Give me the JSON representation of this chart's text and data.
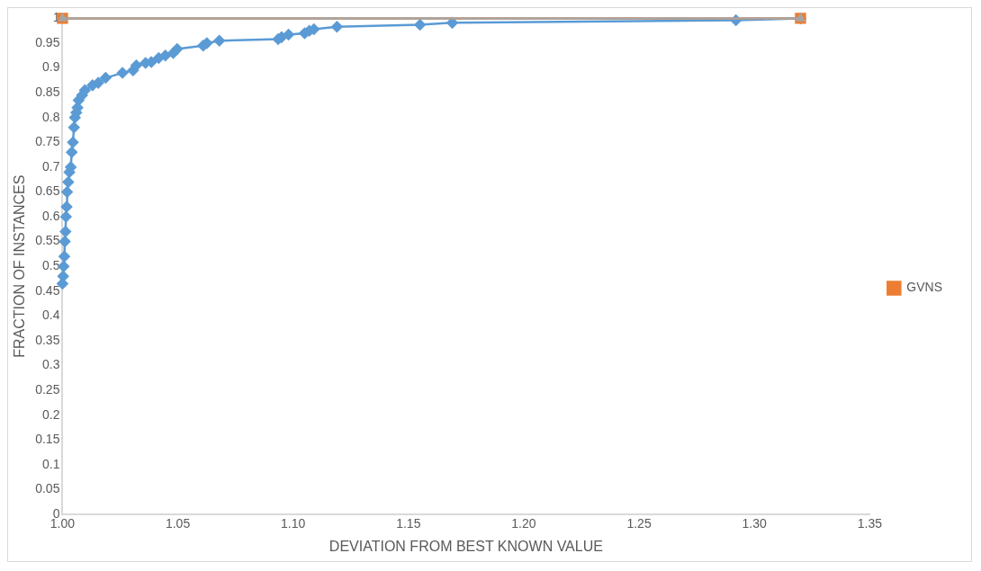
{
  "chart_data": {
    "type": "line",
    "xlabel": "DEVIATION FROM BEST KNOWN VALUE",
    "ylabel": "FRACTION OF INSTANCES",
    "xlim": [
      1.0,
      1.35
    ],
    "ylim": [
      0,
      1
    ],
    "xticks": [
      {
        "value": 1.0,
        "label": "1.00"
      },
      {
        "value": 1.05,
        "label": "1.05"
      },
      {
        "value": 1.1,
        "label": "1.10"
      },
      {
        "value": 1.15,
        "label": "1.15"
      },
      {
        "value": 1.2,
        "label": "1.20"
      },
      {
        "value": 1.25,
        "label": "1.25"
      },
      {
        "value": 1.3,
        "label": "1.30"
      },
      {
        "value": 1.35,
        "label": "1.35"
      }
    ],
    "yticks": [
      0,
      0.05,
      0.1,
      0.15,
      0.2,
      0.25,
      0.3,
      0.35,
      0.4,
      0.45,
      0.5,
      0.55,
      0.6,
      0.65,
      0.7,
      0.75,
      0.8,
      0.85,
      0.9,
      0.95,
      1
    ],
    "grid": false,
    "legend": "right",
    "series": [
      {
        "color": "#5b9bd5",
        "marker": "diamond",
        "x": [
          1.0,
          1.0003,
          1.0005,
          1.0008,
          1.001,
          1.0013,
          1.0015,
          1.0018,
          1.002,
          1.0025,
          1.003,
          1.0036,
          1.004,
          1.0045,
          1.005,
          1.0054,
          1.006,
          1.0065,
          1.007,
          1.0085,
          1.0097,
          1.013,
          1.0155,
          1.0187,
          1.026,
          1.0306,
          1.032,
          1.036,
          1.0385,
          1.0417,
          1.0446,
          1.048,
          1.0497,
          1.061,
          1.0626,
          1.068,
          1.0935,
          1.095,
          1.098,
          1.105,
          1.107,
          1.109,
          1.119,
          1.155,
          1.169,
          1.292,
          1.32
        ],
        "values": [
          0.465,
          0.48,
          0.5,
          0.52,
          0.55,
          0.57,
          0.6,
          0.62,
          0.65,
          0.67,
          0.69,
          0.7,
          0.73,
          0.75,
          0.78,
          0.8,
          0.81,
          0.82,
          0.835,
          0.845,
          0.855,
          0.865,
          0.87,
          0.88,
          0.89,
          0.895,
          0.905,
          0.91,
          0.912,
          0.92,
          0.925,
          0.93,
          0.938,
          0.945,
          0.95,
          0.955,
          0.958,
          0.962,
          0.967,
          0.97,
          0.975,
          0.978,
          0.983,
          0.987,
          0.991,
          0.996,
          1
        ]
      },
      {
        "name": "GVNS",
        "color": "#ed7d31",
        "marker": "square",
        "x": [
          1.0,
          1.32
        ],
        "values": [
          1,
          1
        ]
      },
      {
        "color": "#a5a5a5",
        "marker": "triangle",
        "x": [
          1.0,
          1.32
        ],
        "values": [
          1,
          1
        ]
      }
    ]
  }
}
